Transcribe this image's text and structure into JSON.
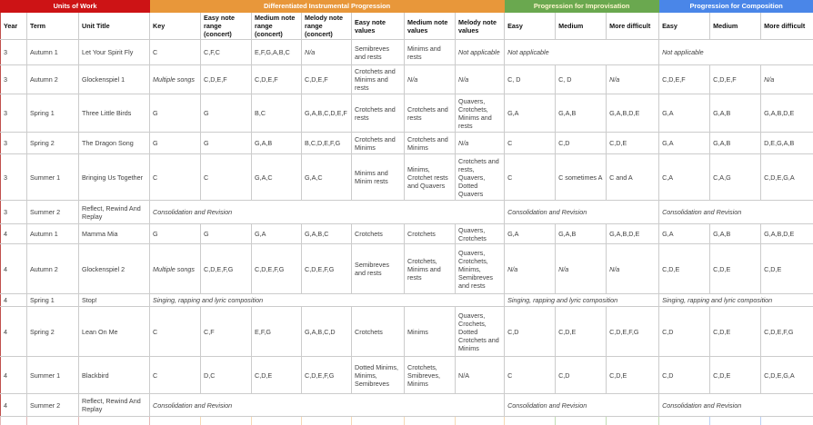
{
  "sections": [
    {
      "title": "Units of Work",
      "color": "#cd1315",
      "text_color": "#ffffff",
      "span": 3
    },
    {
      "title": "Differentiated Instrumental Progression",
      "color": "#e8973a",
      "text_color": "#ffffff",
      "span": 7
    },
    {
      "title": "Progression for Improvisation",
      "color": "#6aa84f",
      "text_color": "#fdf6cd",
      "span": 3
    },
    {
      "title": "Progression for Composition",
      "color": "#4a86e8",
      "text_color": "#ffffff",
      "span": 3
    }
  ],
  "columns": [
    "Year",
    "Term",
    "Unit Title",
    "Key",
    "Easy note range (concert)",
    "Medium note range (concert)",
    "Melody note range (concert)",
    "Easy note values",
    "Medium note values",
    "Melody note values",
    "Easy",
    "Medium",
    "More difficult",
    "Easy",
    "Medium",
    "More difficult"
  ],
  "italic_phrases": [
    "N/a",
    "Not applicable",
    "Multiple songs"
  ],
  "rows": [
    {
      "year": "3",
      "term": "Autumn 1",
      "unit_title": "Let Your Spirit Fly",
      "instrumental": [
        "C",
        "C,F,C",
        "E,F,G,A,B,C",
        "N/a",
        "Semibreves and rests",
        "Minims and rests",
        "Not applicable"
      ],
      "improvisation": "Not applicable",
      "composition": "Not applicable"
    },
    {
      "year": "3",
      "term": "Autumn 2",
      "unit_title": "Glockenspiel 1",
      "instrumental": [
        "Multiple songs",
        "C,D,E,F",
        "C,D,E,F",
        "C,D,E,F",
        "Crotchets and Minims and rests",
        "N/a",
        "N/a"
      ],
      "improvisation": [
        "C, D",
        "C, D",
        "N/a"
      ],
      "composition": [
        "C,D,E,F",
        "C,D,E,F",
        "N/a"
      ]
    },
    {
      "year": "3",
      "term": "Spring 1",
      "unit_title": "Three Little Birds",
      "instrumental": [
        "G",
        "G",
        "B,C",
        "G,A,B,C,D,E,F",
        "Crotchets and rests",
        "Crotchets and rests",
        "Quavers, Crotchets, Minims and rests"
      ],
      "improvisation": [
        "G,A",
        "G,A,B",
        "G,A,B,D,E"
      ],
      "composition": [
        "G,A",
        "G,A,B",
        "G,A,B,D,E"
      ]
    },
    {
      "year": "3",
      "term": "Spring 2",
      "unit_title": "The Dragon Song",
      "instrumental": [
        "G",
        "G",
        "G,A,B",
        "B,C,D,E,F,G",
        "Crotchets and Minims",
        "Crotchets and Minims",
        "N/a"
      ],
      "improvisation": [
        "C",
        "C,D",
        "C,D,E"
      ],
      "composition": [
        "G,A",
        "G,A,B",
        "D,E,G,A,B"
      ]
    },
    {
      "year": "3",
      "term": "Summer 1",
      "unit_title": "Bringing Us Together",
      "instrumental": [
        "C",
        "C",
        "G,A,C",
        "G,A,C",
        "Minims and Minim rests",
        "Minims, Crotchet rests and Quavers",
        "Crotchets and rests, Quavers, Dotted Quavers"
      ],
      "improvisation": [
        "C",
        "C sometimes A",
        "C and A"
      ],
      "composition": [
        "C,A",
        "C,A,G",
        "C,D,E,G,A"
      ]
    },
    {
      "year": "3",
      "term": "Summer 2",
      "unit_title": "Reflect, Rewind And Replay",
      "instrumental": "Consolidation and Revision",
      "improvisation": "Consolidation and Revision",
      "composition": "Consolidation and Revision"
    },
    {
      "year": "4",
      "term": "Autumn 1",
      "unit_title": "Mamma Mia",
      "instrumental": [
        "G",
        "G",
        "G,A",
        "G,A,B,C",
        "Crotchets",
        "Crotchets",
        "Quavers, Crotchets"
      ],
      "improvisation": [
        "G,A",
        "G,A,B",
        "G,A,B,D,E"
      ],
      "composition": [
        "G,A",
        "G,A,B",
        "G,A,B,D,E"
      ]
    },
    {
      "year": "4",
      "term": "Autumn 2",
      "unit_title": "Glockenspiel 2",
      "instrumental": [
        "Multiple songs",
        "C,D,E,F,G",
        "C,D,E,F,G",
        "C,D,E,F,G",
        "Semibreves and rests",
        "Crotchets, Minims and rests",
        "Quavers, Crotchets, Minims, Semibreves and rests"
      ],
      "improvisation": [
        "N/a",
        "N/a",
        "N/a"
      ],
      "composition": [
        "C,D,E",
        "C,D,E",
        "C,D,E"
      ]
    },
    {
      "year": "4",
      "term": "Spring 1",
      "unit_title": "Stop!",
      "instrumental": "Singing, rapping and lyric composition",
      "improvisation": "Singing, rapping and lyric composition",
      "composition": "Singing, rapping and lyric composition"
    },
    {
      "year": "4",
      "term": "Spring 2",
      "unit_title": "Lean On Me",
      "instrumental": [
        "C",
        "C,F",
        "E,F,G",
        "G,A,B,C,D",
        "Crotchets",
        "Minims",
        "Quavers, Crochets, Dotted Crotchets and Minims"
      ],
      "improvisation": [
        "C,D",
        "C,D,E",
        "C,D,E,F,G"
      ],
      "composition": [
        "C,D",
        "C,D,E",
        "C,D,E,F,G"
      ]
    },
    {
      "year": "4",
      "term": "Summer 1",
      "unit_title": "Blackbird",
      "instrumental": [
        "C",
        "D,C",
        "C,D,E",
        "C,D,E,F,G",
        "Dotted Minims, Minims, Semibreves",
        "Crotchets, Smibreves, Minims",
        "N/A"
      ],
      "improvisation": [
        "C",
        "C,D",
        "C,D,E"
      ],
      "composition": [
        "C,D",
        "C,D,E",
        "C,D,E,G,A"
      ]
    },
    {
      "year": "4",
      "term": "Summer 2",
      "unit_title": "Reflect, Rewind And Replay",
      "instrumental": "Consolidation and Revision",
      "improvisation": "Consolidation and Revision",
      "composition": "Consolidation and Revision"
    }
  ]
}
